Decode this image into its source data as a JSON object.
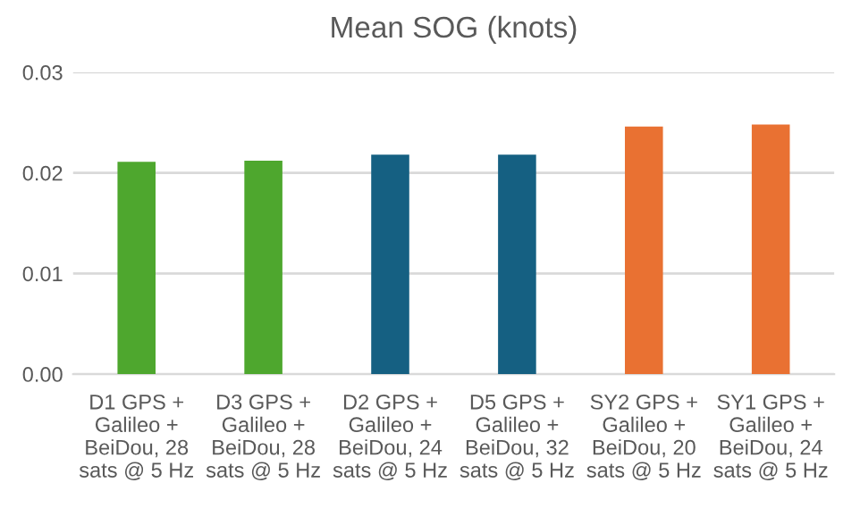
{
  "chart_data": {
    "type": "bar",
    "title": "Mean SOG (knots)",
    "categories": [
      "D1 GPS + Galileo + BeiDou, 28 sats @ 5 Hz",
      "D3 GPS + Galileo + BeiDou, 28 sats @ 5 Hz",
      "D2 GPS + Galileo + BeiDou, 24 sats @ 5 Hz",
      "D5 GPS + Galileo + BeiDou, 32 sats @ 5 Hz",
      "SY2 GPS + Galileo + BeiDou, 20 sats @ 5 Hz",
      "SY1 GPS + Galileo + BeiDou, 24 sats @ 5 Hz"
    ],
    "values": [
      0.0211,
      0.0212,
      0.0218,
      0.0218,
      0.0246,
      0.0248
    ],
    "colors": [
      "#4ea72e",
      "#4ea72e",
      "#156082",
      "#156082",
      "#e97132",
      "#e97132"
    ],
    "ylim": [
      0,
      0.03
    ],
    "yticks": [
      {
        "value": 0,
        "label": "0.00"
      },
      {
        "value": 0.01,
        "label": "0.01"
      },
      {
        "value": 0.02,
        "label": "0.02"
      },
      {
        "value": 0.03,
        "label": "0.03"
      }
    ],
    "grid": "y",
    "legend": false
  }
}
